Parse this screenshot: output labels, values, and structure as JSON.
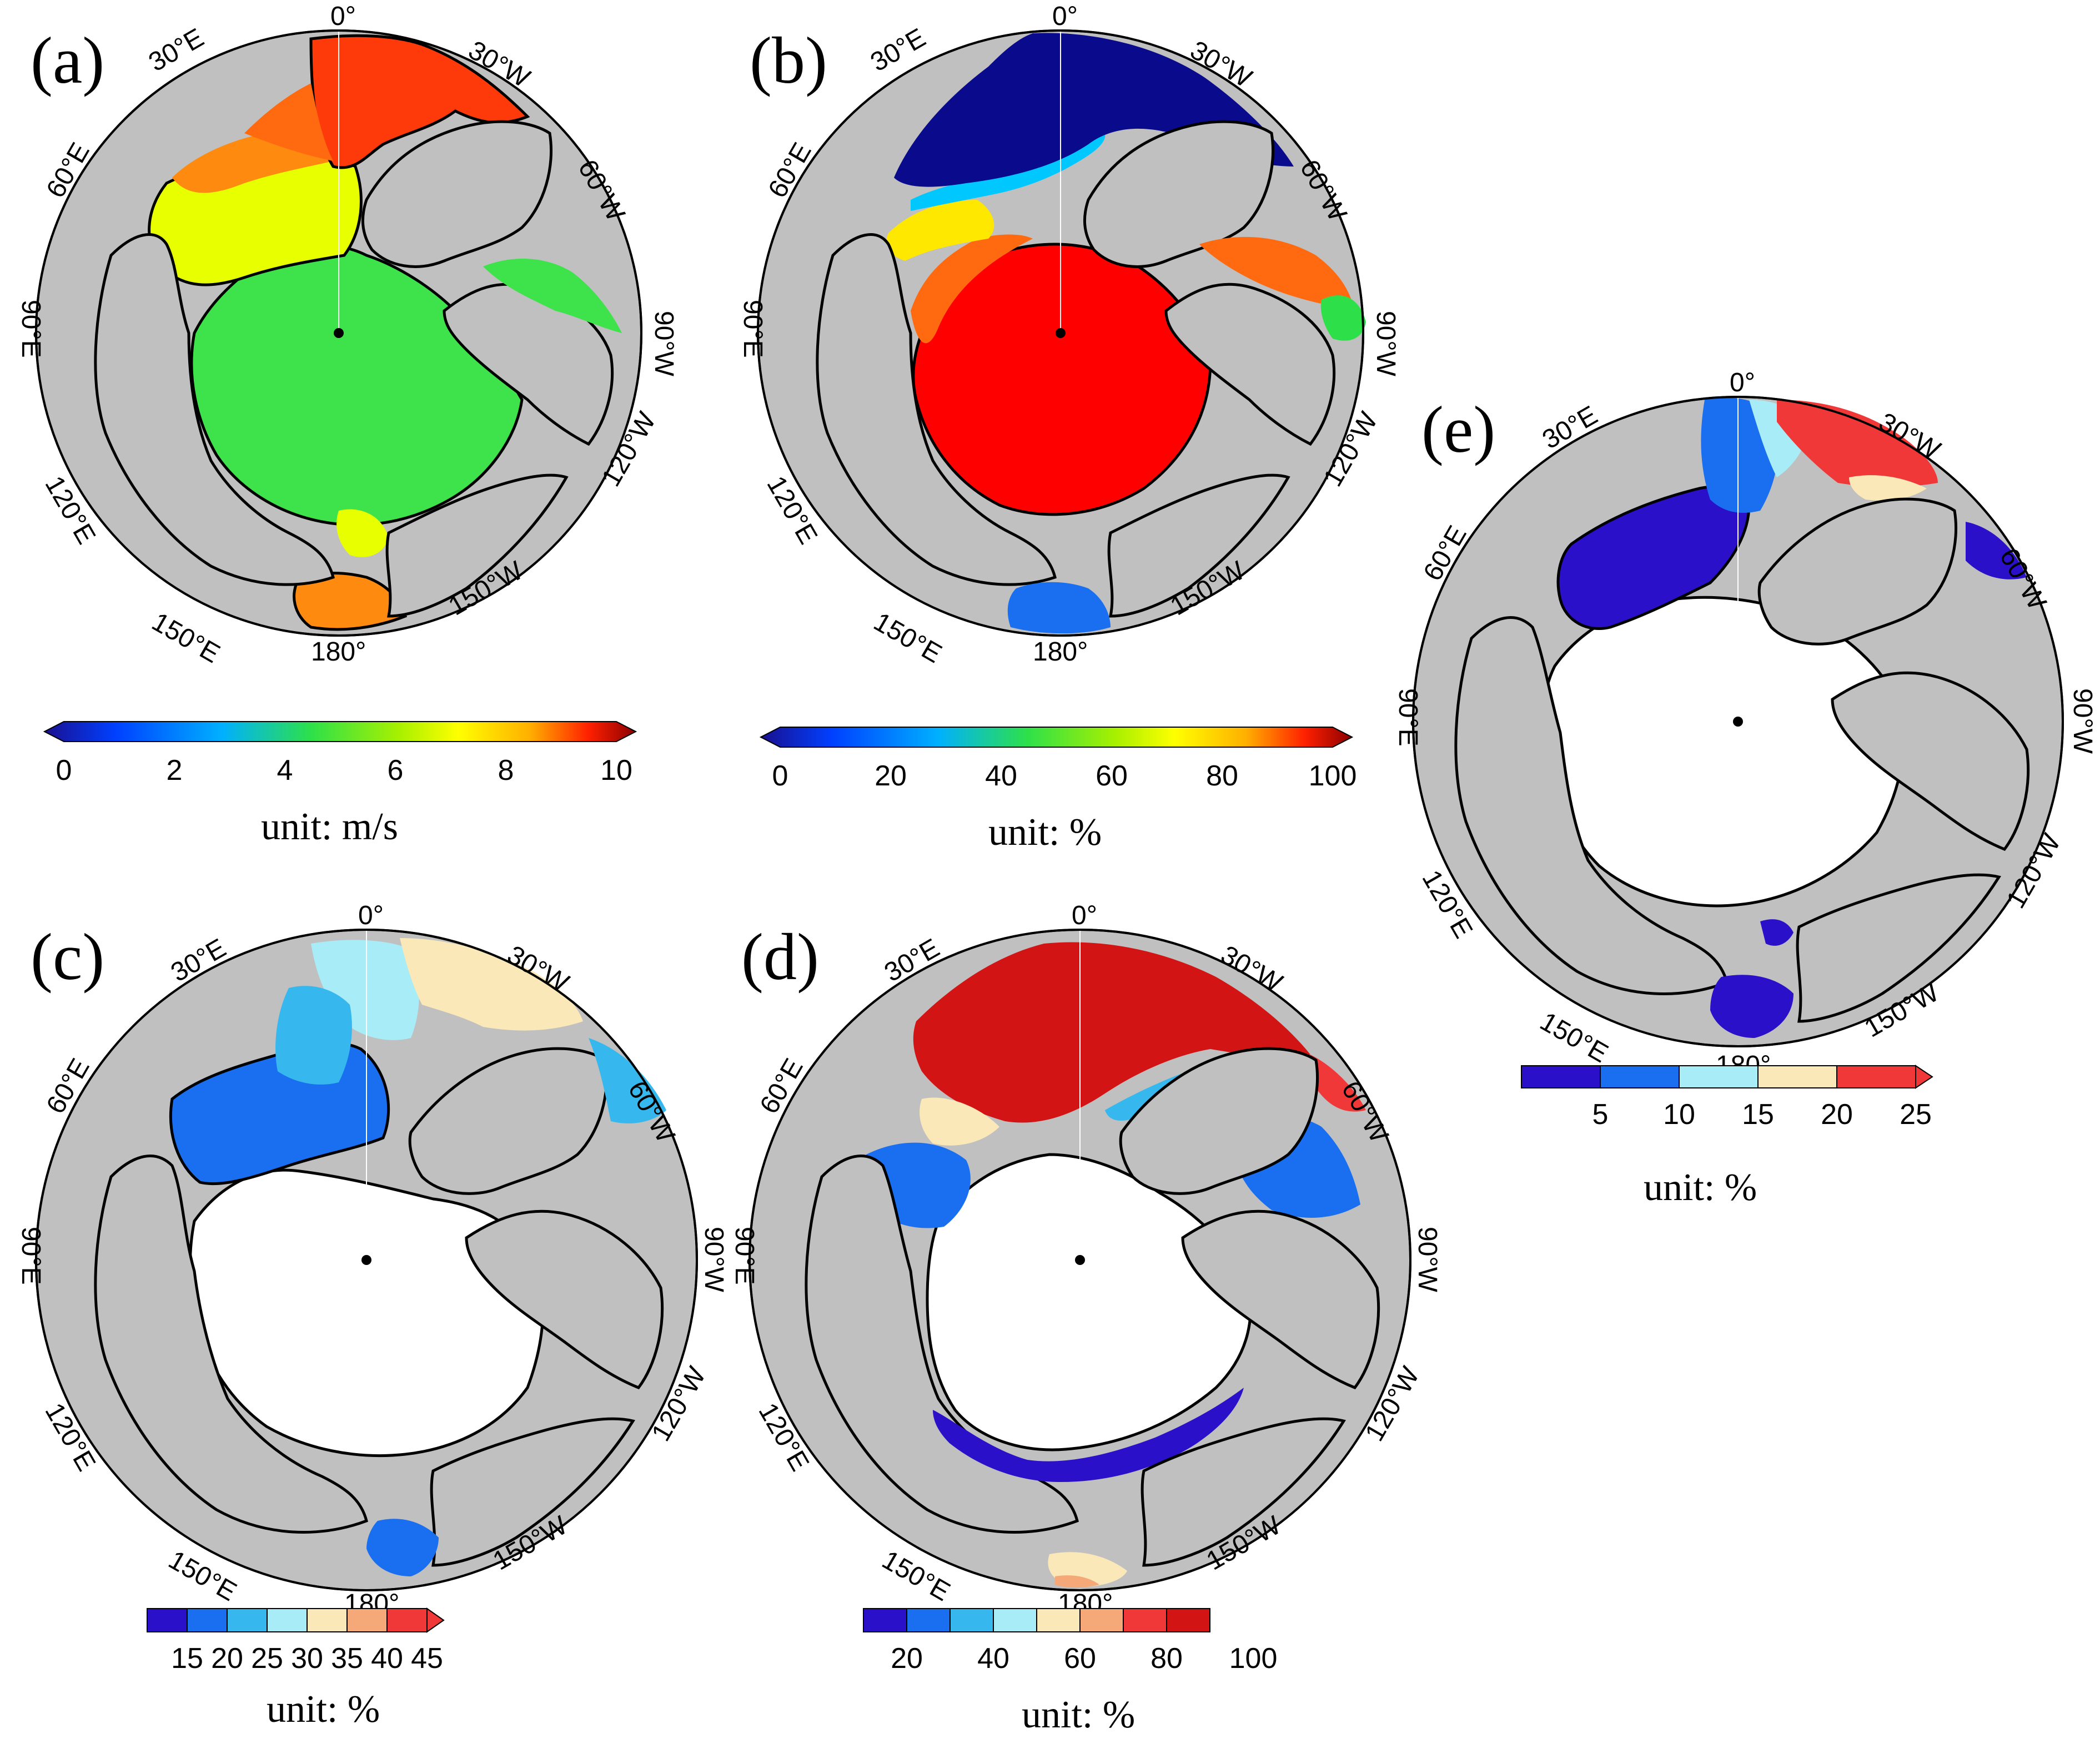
{
  "panels": [
    {
      "label": "(a)",
      "unit": "unit: m/s",
      "colorbar": {
        "ticks": [
          "0",
          "2",
          "4",
          "6",
          "8",
          "10"
        ],
        "gradient": [
          "#1a0f8f",
          "#0040ff",
          "#00b0ff",
          "#00e8c8",
          "#2de04a",
          "#a8f000",
          "#ffff00",
          "#ffb000",
          "#ff5000",
          "#ff0000",
          "#8b0000"
        ]
      }
    },
    {
      "label": "(b)",
      "unit": "unit: %",
      "colorbar": {
        "ticks": [
          "0",
          "20",
          "40",
          "60",
          "80",
          "100"
        ],
        "gradient": [
          "#1a0f8f",
          "#0040ff",
          "#00b0ff",
          "#00e8c8",
          "#2de04a",
          "#a8f000",
          "#ffff00",
          "#ffb000",
          "#ff5000",
          "#ff0000",
          "#8b0000"
        ]
      }
    },
    {
      "label": "(c)",
      "unit": "unit: %",
      "colorbar": {
        "ticks": [
          "15",
          "20",
          "25",
          "30",
          "35",
          "40",
          "45"
        ],
        "colors": [
          "#2a10c8",
          "#1a6ef0",
          "#36b8ee",
          "#a8ecf8",
          "#fbe8b8",
          "#f5a878",
          "#f03838"
        ]
      }
    },
    {
      "label": "(d)",
      "unit": "unit: %",
      "colorbar": {
        "ticks": [
          "20",
          "40",
          "60",
          "80",
          "100"
        ],
        "colors": [
          "#2a10c8",
          "#1a6ef0",
          "#36b8ee",
          "#a8ecf8",
          "#fbe8b8",
          "#f5a878",
          "#f03838",
          "#d21414"
        ]
      }
    },
    {
      "label": "(e)",
      "unit": "unit: %",
      "colorbar": {
        "ticks": [
          "5",
          "10",
          "15",
          "20",
          "25"
        ],
        "colors": [
          "#2a10c8",
          "#1a6ef0",
          "#a8ecf8",
          "#fbe8b8",
          "#f03838"
        ]
      }
    }
  ],
  "map_labels": {
    "lon_0": "0°",
    "lon_30w": "30°W",
    "lon_60w": "60°W",
    "lon_90w": "90°W",
    "lon_120w": "120°W",
    "lon_150w": "150°W",
    "lon_180": "180°",
    "lon_150e": "150°E",
    "lon_120e": "120°E",
    "lon_90e": "90°E",
    "lon_60e": "60°E",
    "lon_30e": "30°E"
  },
  "colors": {
    "land": "#c0c0c0",
    "ocean_nodata": "#ffffff",
    "coast": "#000000"
  }
}
